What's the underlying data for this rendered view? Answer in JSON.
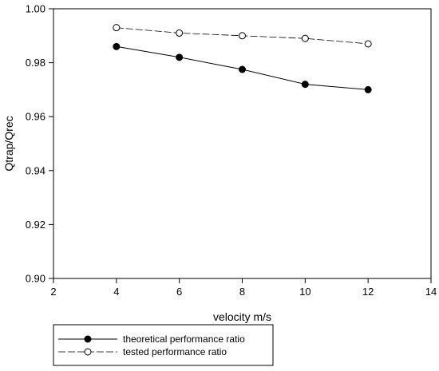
{
  "chart_data": {
    "type": "line",
    "xlabel": "velocity m/s",
    "ylabel": "Qtrap/Qrec",
    "xlim": [
      2,
      14
    ],
    "ylim": [
      0.9,
      1.0
    ],
    "xticks": [
      2,
      4,
      6,
      8,
      10,
      12,
      14
    ],
    "yticks": [
      0.9,
      0.92,
      0.94,
      0.96,
      0.98,
      1.0
    ],
    "x_tick_labels": [
      "2",
      "4",
      "6",
      "8",
      "10",
      "12",
      "14"
    ],
    "y_tick_labels": [
      "0.90",
      "0.92",
      "0.94",
      "0.96",
      "0.98",
      "1.00"
    ],
    "grid": false,
    "legend_position": "bottom",
    "series": [
      {
        "name": "theoretical performance ratio",
        "x": [
          4,
          6,
          8,
          10,
          12
        ],
        "y": [
          0.986,
          0.982,
          0.9775,
          0.972,
          0.97
        ],
        "marker": "filled-circle",
        "line_style": "solid",
        "color": "#000000"
      },
      {
        "name": "tested performance ratio",
        "x": [
          4,
          6,
          8,
          10,
          12
        ],
        "y": [
          0.993,
          0.991,
          0.99,
          0.989,
          0.987
        ],
        "marker": "open-circle",
        "line_style": "dashed",
        "color": "#000000"
      }
    ]
  }
}
